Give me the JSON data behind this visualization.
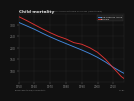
{
  "title": "Child mortality",
  "subtitle": "Declining child mortality in Sub-Saharan Africa and Ethiopia since 1950 (from Ethiopia)",
  "bg_color": "#111111",
  "plot_bg": "#111111",
  "years": [
    1950,
    1955,
    1960,
    1965,
    1970,
    1975,
    1980,
    1985,
    1990,
    1995,
    2000,
    2005,
    2010,
    2015,
    2017
  ],
  "ssa_values": [
    310,
    295,
    280,
    263,
    247,
    232,
    218,
    204,
    190,
    175,
    158,
    138,
    115,
    95,
    88
  ],
  "eth_values": [
    335,
    318,
    300,
    282,
    265,
    250,
    238,
    222,
    215,
    200,
    180,
    150,
    112,
    75,
    65
  ],
  "ssa_color": "#4488dd",
  "eth_color": "#dd3333",
  "ssa_label": "Sub-Saharan Africa",
  "eth_label": "Ethiopia",
  "xlim": [
    1950,
    2017
  ],
  "ylim": [
    50,
    345
  ],
  "yticks": [
    100,
    150,
    200,
    250,
    300
  ],
  "xticks": [
    1950,
    1960,
    1970,
    1980,
    1990,
    2000,
    2010
  ],
  "grid_color": "#333333",
  "tick_color": "#888888",
  "title_color": "#dddddd",
  "label_color": "#888888",
  "legend_bg": "#222222",
  "legend_border": "#444444",
  "source_left": "OurWorldInData.org/child-mortality",
  "source_right": "CC BY"
}
